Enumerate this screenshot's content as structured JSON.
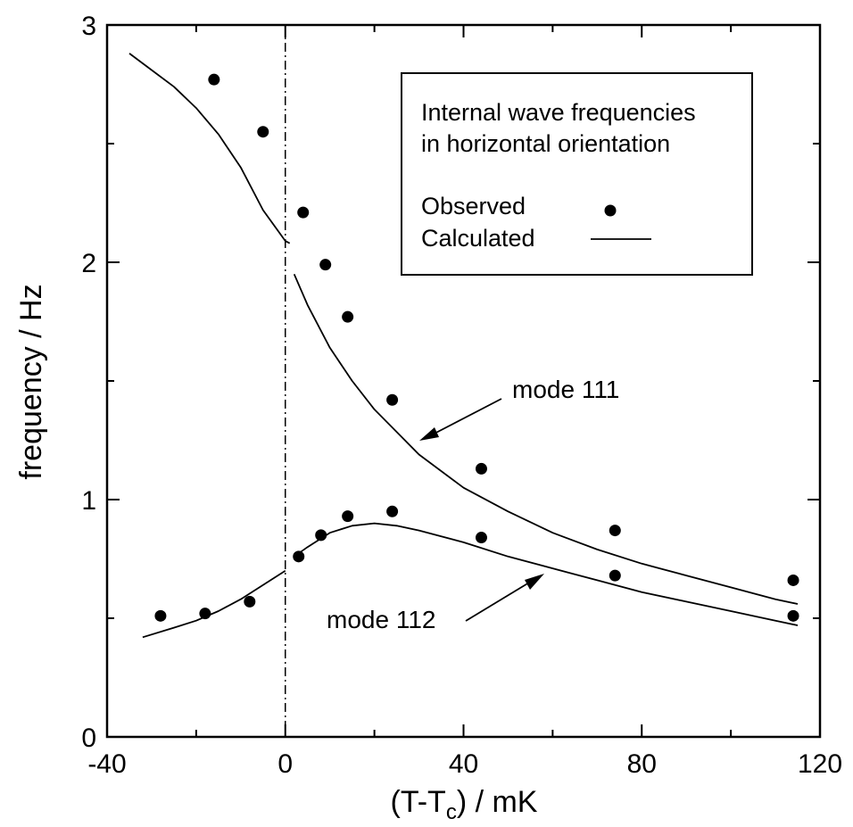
{
  "chart_data": {
    "type": "scatter",
    "xlabel_main": "(T-T",
    "xlabel_sub": "c",
    "xlabel_tail": ") / mK",
    "ylabel": "frequency / Hz",
    "xlim": [
      -40,
      120
    ],
    "ylim": [
      0,
      3
    ],
    "x_ticks": [
      -40,
      0,
      40,
      80,
      120
    ],
    "x_minor_ticks": [
      -20,
      20,
      60,
      100
    ],
    "y_ticks": [
      0,
      1,
      2,
      3
    ],
    "y_minor_ticks": [
      0.5,
      1.5,
      2.5
    ],
    "reference_line_x": 0,
    "legend": {
      "title_line1": "Internal wave frequencies",
      "title_line2": "in horizontal orientation",
      "observed_label": "Observed",
      "calculated_label": "Calculated"
    },
    "annotations": {
      "mode111": "mode 111",
      "mode112": "mode 112"
    },
    "series": [
      {
        "name": "mode 111",
        "kind": "calculated",
        "x": [
          -35,
          -30,
          -25,
          -20,
          -15,
          -10,
          -5,
          0,
          1
        ],
        "y": [
          2.88,
          2.81,
          2.74,
          2.65,
          2.54,
          2.4,
          2.22,
          2.09,
          2.08
        ]
      },
      {
        "name": "mode 111",
        "kind": "calculated",
        "x": [
          2,
          5,
          10,
          15,
          20,
          30,
          40,
          50,
          60,
          70,
          80,
          90,
          100,
          110,
          115
        ],
        "y": [
          1.95,
          1.82,
          1.64,
          1.5,
          1.38,
          1.19,
          1.05,
          0.95,
          0.86,
          0.79,
          0.73,
          0.68,
          0.63,
          0.58,
          0.56
        ]
      },
      {
        "name": "mode 112",
        "kind": "calculated",
        "x": [
          -32,
          -25,
          -20,
          -15,
          -10,
          -5,
          0
        ],
        "y": [
          0.42,
          0.46,
          0.49,
          0.53,
          0.58,
          0.64,
          0.7
        ]
      },
      {
        "name": "mode 112",
        "kind": "calculated",
        "x": [
          2,
          5,
          10,
          15,
          20,
          25,
          30,
          40,
          50,
          60,
          70,
          80,
          90,
          100,
          110,
          115
        ],
        "y": [
          0.76,
          0.8,
          0.86,
          0.89,
          0.9,
          0.89,
          0.87,
          0.82,
          0.76,
          0.71,
          0.66,
          0.61,
          0.57,
          0.53,
          0.49,
          0.47
        ]
      },
      {
        "name": "mode 111",
        "kind": "observed",
        "x": [
          -16,
          -5,
          4,
          9,
          14,
          24,
          44,
          74,
          114
        ],
        "y": [
          2.77,
          2.55,
          2.21,
          1.99,
          1.77,
          1.42,
          1.13,
          0.87,
          0.66
        ]
      },
      {
        "name": "mode 112",
        "kind": "observed",
        "x": [
          -28,
          -18,
          -8,
          3,
          8,
          14,
          24,
          44,
          74,
          114
        ],
        "y": [
          0.51,
          0.52,
          0.57,
          0.76,
          0.85,
          0.93,
          0.95,
          0.84,
          0.68,
          0.51
        ]
      }
    ]
  }
}
